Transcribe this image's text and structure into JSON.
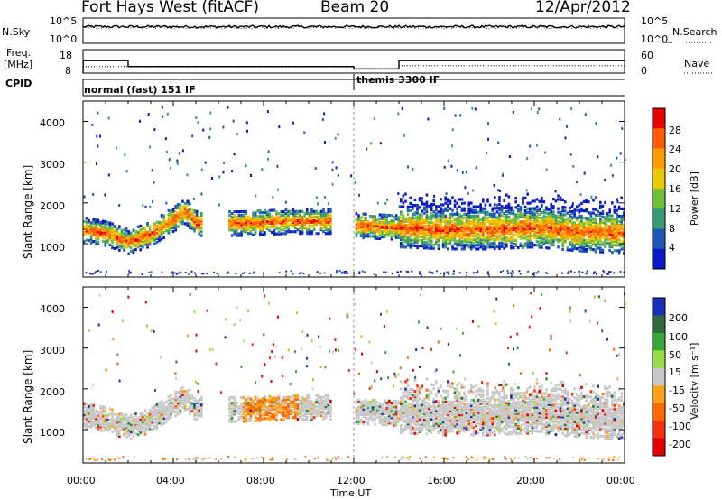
{
  "header": {
    "title": "Fort Hays West (fitACF)",
    "beam": "Beam 20",
    "date": "12/Apr/2012"
  },
  "panel_labels": {
    "nsky": "N.Sky",
    "nsearch": "N.Search",
    "freq_top": "Freq.",
    "freq_unit": "[MHz]",
    "nave": "Nave",
    "cpid": "CPID",
    "cpid_mode_1": "normal (fast) 151 IF",
    "cpid_mode_2": "themis 3300 IF"
  },
  "noise_axis": {
    "top": "10^5",
    "bottom": "10^0"
  },
  "freq_axis": {
    "left_ticks": [
      "18",
      "8"
    ],
    "right_ticks": [
      "60",
      "0"
    ]
  },
  "time_axis": {
    "label": "Time UT",
    "ticks": [
      "00:00",
      "04:00",
      "08:00",
      "12:00",
      "16:00",
      "20:00",
      "00:00"
    ]
  },
  "range_axis": {
    "label": "Slant Range [km]",
    "ticks": [
      "4000",
      "3000",
      "2000",
      "1000"
    ]
  },
  "power_scale": {
    "label": "Power [dB]",
    "ticks": [
      "28",
      "24",
      "20",
      "16",
      "12",
      "8",
      "4"
    ],
    "colors": [
      "#e60000",
      "#ff5a00",
      "#ff9a00",
      "#e8c800",
      "#6fbf3a",
      "#3a9a74",
      "#1f57b8",
      "#0a18c8"
    ]
  },
  "velocity_scale": {
    "label": "Velocity [m s⁻¹]",
    "ticks": [
      "200",
      "100",
      "50",
      "15",
      "-15",
      "-50",
      "-100",
      "-200"
    ],
    "colors": [
      "#1a2fb8",
      "#2f6a3c",
      "#3aa638",
      "#99dd44",
      "#c8c8c8",
      "#ffa11a",
      "#ff6a00",
      "#f23010",
      "#e00000"
    ]
  },
  "chart_data": [
    {
      "type": "line",
      "title": "N.Sky / N.Search",
      "x_range_hours": [
        0,
        24
      ],
      "ylim_log10": [
        0,
        5
      ],
      "series": [
        {
          "name": "N.Sky",
          "level_log10": 3.3
        },
        {
          "name": "N.Search",
          "level_log10": 3.1
        }
      ]
    },
    {
      "type": "line",
      "title": "Freq. / Nave",
      "ylim": [
        8,
        18
      ],
      "series": [
        {
          "name": "Freq.",
          "x_hours": [
            0,
            0.01,
            2.0,
            2.0,
            12.0,
            12.0,
            14.0,
            14.0,
            24.0
          ],
          "values": [
            8,
            13.3,
            13.3,
            10.8,
            10.8,
            9.8,
            9.8,
            13.3,
            13.3
          ]
        },
        {
          "name": "Nave",
          "x_hours": [
            0,
            2.0,
            2.0,
            12.0,
            12.0,
            14.0,
            14.0,
            24.0
          ],
          "values": [
            10.8,
            10.8,
            10.6,
            10.6,
            9.6,
            9.6,
            11.2,
            11.2
          ]
        }
      ]
    },
    {
      "type": "heatmap",
      "title": "Power [dB]",
      "xlabel": "Time UT",
      "ylabel": "Slant Range [km]",
      "x_range_hours": [
        0,
        24
      ],
      "ylim": [
        180,
        4500
      ],
      "zlim": [
        0,
        30
      ],
      "echo_band": {
        "hours": [
          0.0,
          1.0,
          2.0,
          3.0,
          4.5,
          5.0,
          7.0,
          9.0,
          11.0,
          12.1,
          14.0,
          16.0,
          18.0,
          20.0,
          22.0,
          24.0
        ],
        "center_km": [
          1350,
          1250,
          1050,
          1250,
          1800,
          1500,
          1500,
          1550,
          1550,
          1450,
          1400,
          1350,
          1350,
          1400,
          1300,
          1250
        ]
      }
    },
    {
      "type": "heatmap",
      "title": "Velocity [m s⁻¹]",
      "xlabel": "Time UT",
      "ylabel": "Slant Range [km]",
      "x_range_hours": [
        0,
        24
      ],
      "ylim": [
        180,
        4500
      ],
      "zlim": [
        -200,
        200
      ]
    }
  ]
}
